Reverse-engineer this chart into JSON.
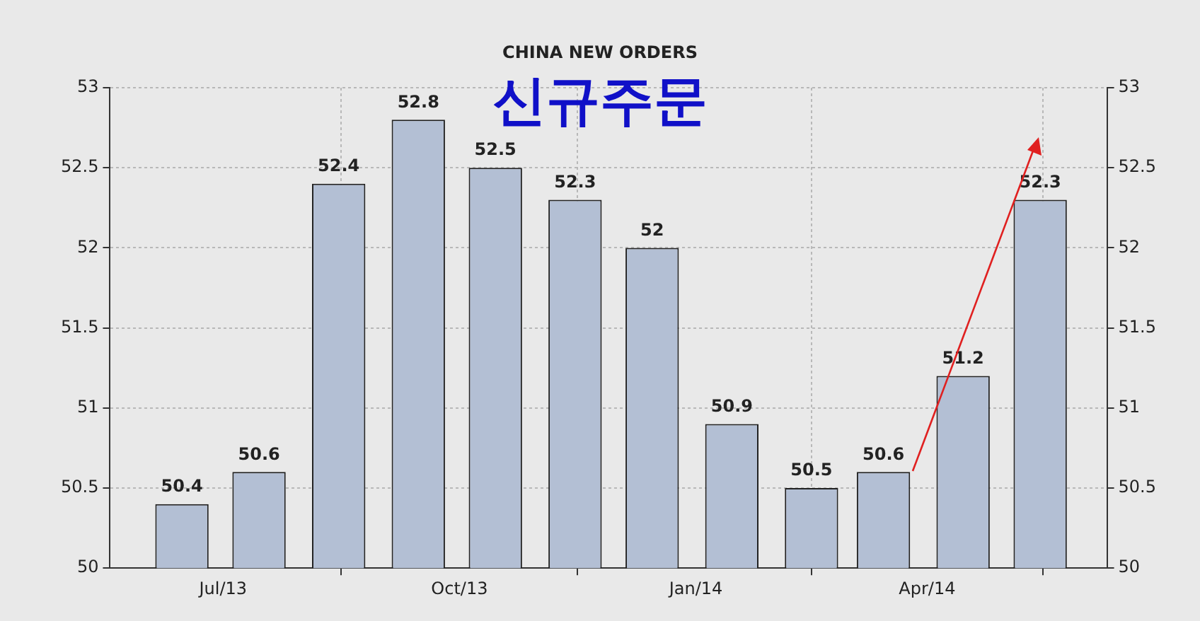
{
  "chart_data": {
    "type": "bar",
    "title": "CHINA NEW ORDERS",
    "annotations": [
      "신규주문"
    ],
    "x": [
      "2013-06-15",
      "2013-07-15",
      "2013-08-15",
      "2013-09-15",
      "2013-10-15",
      "2013-11-15",
      "2013-12-15",
      "2014-01-15",
      "2014-02-15",
      "2014-03-15",
      "2014-04-15",
      "2014-05-15"
    ],
    "values": [
      50.4,
      50.6,
      52.4,
      52.8,
      52.5,
      52.3,
      52,
      50.9,
      50.5,
      50.6,
      51.2,
      52.3
    ],
    "color": "#b3bfd4",
    "data_labels": true,
    "grid": true,
    "xlim": [
      "2013-05-18",
      "2014-06-10"
    ],
    "xticks": [
      {
        "value": "2013-07-01",
        "label": "Jul/13"
      },
      {
        "value": "2013-10-01",
        "label": "Oct/13"
      },
      {
        "value": "2014-01-01",
        "label": "Jan/14"
      },
      {
        "value": "2014-04-01",
        "label": "Apr/14"
      }
    ],
    "ylim": [
      50,
      53
    ],
    "yticks": [
      50,
      50.5,
      51,
      51.5,
      52,
      52.5,
      53
    ],
    "y2lim": [
      50,
      53
    ],
    "y2ticks": [
      50,
      50.5,
      51,
      51.5,
      52,
      52.5,
      53
    ]
  }
}
